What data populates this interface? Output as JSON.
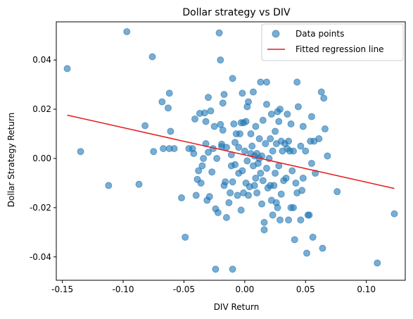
{
  "chart_data": {
    "type": "scatter",
    "title": "Dollar strategy vs DIV",
    "xlabel": "DIV Return",
    "ylabel": "Dollar Strategy Return",
    "xlim": [
      -0.155,
      0.132
    ],
    "ylim": [
      -0.0495,
      0.0555
    ],
    "x_ticks": [
      "-0.15",
      "-0.10",
      "-0.05",
      "0.00",
      "0.05",
      "0.10"
    ],
    "x_tick_values": [
      -0.15,
      -0.1,
      -0.05,
      0.0,
      0.05,
      0.1
    ],
    "y_ticks": [
      "-0.04",
      "-0.02",
      "0.00",
      "0.02",
      "0.04"
    ],
    "y_tick_values": [
      -0.04,
      -0.02,
      0.0,
      0.02,
      0.04
    ],
    "grid": false,
    "legend_position": "top-right",
    "series": [
      {
        "name": "Data points",
        "kind": "scatter",
        "color": "#1f77b4",
        "points": [
          [
            -0.146,
            0.0365
          ],
          [
            -0.135,
            0.0028
          ],
          [
            -0.112,
            -0.011
          ],
          [
            -0.097,
            0.0515
          ],
          [
            -0.087,
            -0.0105
          ],
          [
            -0.082,
            0.0133
          ],
          [
            -0.076,
            0.0413
          ],
          [
            -0.075,
            0.0028
          ],
          [
            -0.068,
            0.023
          ],
          [
            -0.067,
            0.004
          ],
          [
            -0.063,
            0.0205
          ],
          [
            -0.062,
            0.0265
          ],
          [
            -0.062,
            0.004
          ],
          [
            -0.061,
            0.011
          ],
          [
            -0.058,
            0.004
          ],
          [
            -0.052,
            -0.016
          ],
          [
            -0.049,
            -0.032
          ],
          [
            -0.046,
            0.004
          ],
          [
            -0.043,
            0.004
          ],
          [
            -0.042,
            0.002
          ],
          [
            -0.041,
            0.016
          ],
          [
            -0.04,
            -0.015
          ],
          [
            -0.039,
            -0.0085
          ],
          [
            -0.038,
            -0.005
          ],
          [
            -0.037,
            0.0183
          ],
          [
            -0.036,
            -0.01
          ],
          [
            -0.035,
            -0.003
          ],
          [
            -0.034,
            0.0
          ],
          [
            -0.033,
            0.0185
          ],
          [
            -0.032,
            0.006
          ],
          [
            -0.032,
            0.015
          ],
          [
            -0.031,
            -0.017
          ],
          [
            -0.03,
            0.0025
          ],
          [
            -0.03,
            0.0248
          ],
          [
            -0.029,
            -0.0155
          ],
          [
            -0.028,
            0.0193
          ],
          [
            -0.027,
            -0.0055
          ],
          [
            -0.026,
            0.004
          ],
          [
            -0.025,
            0.013
          ],
          [
            -0.024,
            -0.0205
          ],
          [
            -0.024,
            -0.045
          ],
          [
            -0.023,
            0.0
          ],
          [
            -0.022,
            -0.022
          ],
          [
            -0.021,
            0.051
          ],
          [
            -0.02,
            0.04
          ],
          [
            -0.02,
            0.0138
          ],
          [
            -0.019,
            0.0048
          ],
          [
            -0.019,
            0.0058
          ],
          [
            -0.018,
            0.0225
          ],
          [
            -0.018,
            0.0115
          ],
          [
            -0.017,
            -0.011
          ],
          [
            -0.017,
            0.026
          ],
          [
            -0.016,
            -0.0095
          ],
          [
            -0.015,
            -0.024
          ],
          [
            -0.015,
            0.0045
          ],
          [
            -0.013,
            -0.018
          ],
          [
            -0.012,
            -0.014
          ],
          [
            -0.011,
            -0.003
          ],
          [
            -0.011,
            0.0015
          ],
          [
            -0.01,
            0.0325
          ],
          [
            -0.01,
            -0.045
          ],
          [
            -0.01,
            -0.0095
          ],
          [
            -0.009,
            0.014
          ],
          [
            -0.008,
            0.0065
          ],
          [
            -0.008,
            -0.0025
          ],
          [
            -0.007,
            0.01
          ],
          [
            -0.006,
            -0.015
          ],
          [
            -0.005,
            0.0045
          ],
          [
            -0.005,
            -0.006
          ],
          [
            -0.004,
            0.01
          ],
          [
            -0.003,
            -0.021
          ],
          [
            -0.003,
            0.0145
          ],
          [
            -0.002,
            0.0265
          ],
          [
            -0.002,
            -0.005
          ],
          [
            -0.001,
            -0.014
          ],
          [
            -0.001,
            0.0145
          ],
          [
            0.0,
            0.003
          ],
          [
            0.001,
            -0.01
          ],
          [
            0.001,
            0.015
          ],
          [
            0.002,
            0.021
          ],
          [
            0.002,
            -0.001
          ],
          [
            0.003,
            0.023
          ],
          [
            0.003,
            -0.015
          ],
          [
            0.004,
            -0.0115
          ],
          [
            0.005,
            0.002
          ],
          [
            0.005,
            0.01
          ],
          [
            0.006,
            0.005
          ],
          [
            0.007,
            -0.003
          ],
          [
            0.007,
            0.027
          ],
          [
            0.008,
            -0.011
          ],
          [
            0.008,
            0.001
          ],
          [
            0.009,
            0.013
          ],
          [
            0.009,
            -0.008
          ],
          [
            0.01,
            0.002
          ],
          [
            0.01,
            -0.014
          ],
          [
            0.011,
            -0.002
          ],
          [
            0.012,
            0.0
          ],
          [
            0.012,
            0.008
          ],
          [
            0.013,
            0.031
          ],
          [
            0.013,
            -0.006
          ],
          [
            0.014,
            -0.0185
          ],
          [
            0.014,
            0.001
          ],
          [
            0.015,
            0.0155
          ],
          [
            0.015,
            -0.009
          ],
          [
            0.016,
            -0.026
          ],
          [
            0.016,
            -0.029
          ],
          [
            0.017,
            0.006
          ],
          [
            0.018,
            0.022
          ],
          [
            0.018,
            0.031
          ],
          [
            0.018,
            -0.004
          ],
          [
            0.019,
            -0.012
          ],
          [
            0.02,
            0.0
          ],
          [
            0.021,
            -0.011
          ],
          [
            0.021,
            0.008
          ],
          [
            0.022,
            -0.017
          ],
          [
            0.022,
            0.018
          ],
          [
            0.023,
            0.003
          ],
          [
            0.023,
            -0.023
          ],
          [
            0.024,
            -0.011
          ],
          [
            0.025,
            0.011
          ],
          [
            0.025,
            -0.006
          ],
          [
            0.026,
            0.006
          ],
          [
            0.026,
            -0.018
          ],
          [
            0.027,
            0.019
          ],
          [
            0.027,
            -0.02
          ],
          [
            0.028,
            0.015
          ],
          [
            0.028,
            -0.003
          ],
          [
            0.029,
            -0.025
          ],
          [
            0.029,
            0.02
          ],
          [
            0.03,
            -0.0145
          ],
          [
            0.03,
            0.007
          ],
          [
            0.031,
            0.003
          ],
          [
            0.032,
            -0.009
          ],
          [
            0.033,
            0.006
          ],
          [
            0.034,
            -0.008
          ],
          [
            0.035,
            0.018
          ],
          [
            0.035,
            0.004
          ],
          [
            0.036,
            -0.025
          ],
          [
            0.036,
            0.007
          ],
          [
            0.037,
            0.003
          ],
          [
            0.038,
            -0.02
          ],
          [
            0.038,
            0.014
          ],
          [
            0.039,
            -0.005
          ],
          [
            0.04,
            -0.02
          ],
          [
            0.04,
            0.003
          ],
          [
            0.041,
            -0.033
          ],
          [
            0.042,
            -0.01
          ],
          [
            0.043,
            0.031
          ],
          [
            0.043,
            -0.014
          ],
          [
            0.044,
            0.021
          ],
          [
            0.046,
            0.005
          ],
          [
            0.046,
            -0.025
          ],
          [
            0.047,
            -0.013
          ],
          [
            0.048,
            0.013
          ],
          [
            0.048,
            -0.008
          ],
          [
            0.05,
            0.003
          ],
          [
            0.051,
            -0.0385
          ],
          [
            0.052,
            -0.023
          ],
          [
            0.053,
            -0.023
          ],
          [
            0.054,
            0.007
          ],
          [
            0.055,
            -0.002
          ],
          [
            0.055,
            0.017
          ],
          [
            0.056,
            -0.032
          ],
          [
            0.057,
            0.007
          ],
          [
            0.058,
            -0.006
          ],
          [
            0.061,
            0.008
          ],
          [
            0.063,
            0.027
          ],
          [
            0.064,
            -0.0365
          ],
          [
            0.065,
            0.0245
          ],
          [
            0.066,
            0.012
          ],
          [
            0.068,
            0.001
          ],
          [
            0.076,
            -0.0135
          ],
          [
            0.109,
            -0.0425
          ],
          [
            0.123,
            -0.0225
          ]
        ]
      },
      {
        "name": "Fitted regression line",
        "kind": "line",
        "color": "#e41a1c",
        "points": [
          [
            -0.146,
            0.0176
          ],
          [
            0.123,
            -0.0122
          ]
        ]
      }
    ]
  }
}
